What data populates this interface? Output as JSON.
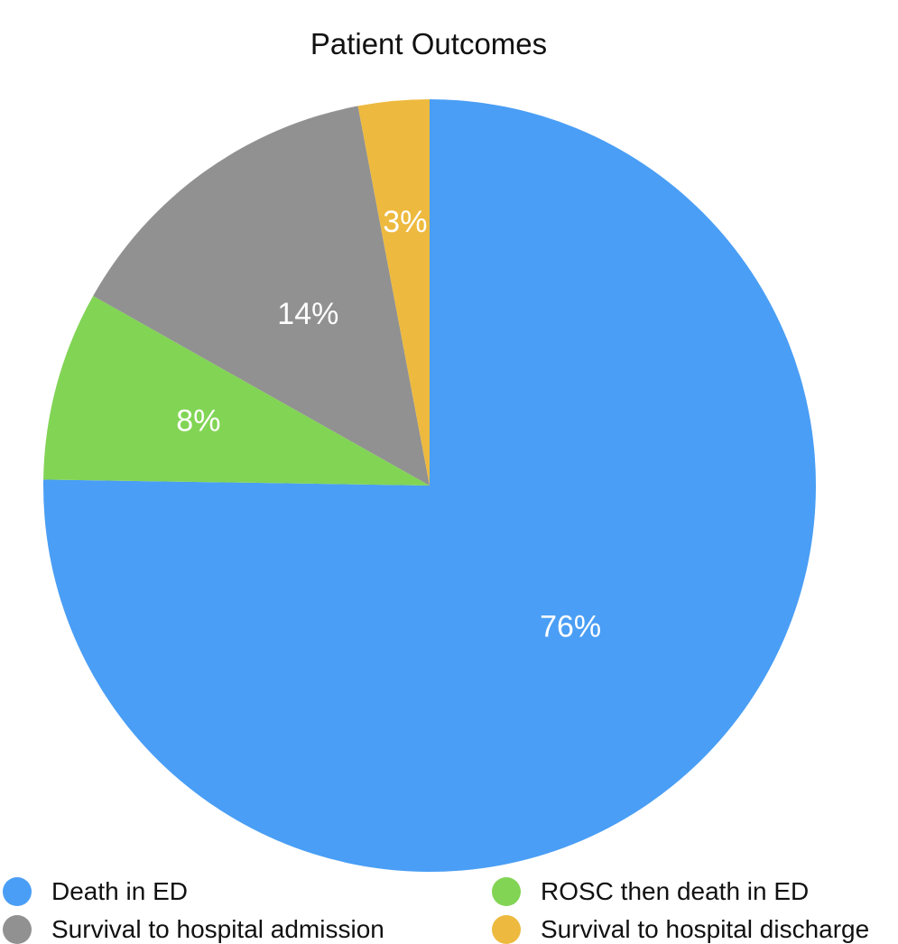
{
  "chart_data": {
    "type": "pie",
    "title": "Patient Outcomes",
    "slices": [
      {
        "label": "Death in ED",
        "value": 76,
        "display": "76%",
        "color": "#4A9EF5"
      },
      {
        "label": "ROSC then death in ED",
        "value": 8,
        "display": "8%",
        "color": "#82D455"
      },
      {
        "label": "Survival to hospital admission",
        "value": 14,
        "display": "14%",
        "color": "#919191"
      },
      {
        "label": "Survival to hospital discharge",
        "value": 3,
        "display": "3%",
        "color": "#EDBA3F"
      }
    ],
    "legend_position": "bottom"
  }
}
